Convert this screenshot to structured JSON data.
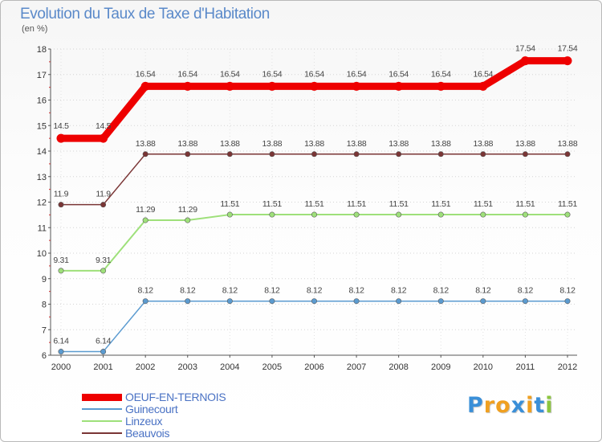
{
  "title": "Evolution du Taux de Taxe d'Habitation",
  "unit": "(en %)",
  "brand": {
    "letters": [
      "P",
      "r",
      "o",
      "x",
      "i",
      "t",
      "i"
    ],
    "colors": [
      "#3a8fd8",
      "#f0a020",
      "#f0a020",
      "#3a8fd8",
      "#f0a020",
      "#3a8fd8",
      "#8cc63f"
    ]
  },
  "chart_data": {
    "type": "line",
    "title": "Evolution du Taux de Taxe d'Habitation",
    "ylabel": "(en %)",
    "xlabel": "",
    "ylim": [
      6,
      18
    ],
    "yticks": [
      "6",
      "7",
      "8",
      "9",
      "10",
      "11",
      "12",
      "13",
      "14",
      "15",
      "16",
      "17",
      "18"
    ],
    "categories": [
      "2000",
      "2001",
      "2002",
      "2003",
      "2004",
      "2005",
      "2006",
      "2007",
      "2008",
      "2009",
      "2010",
      "2011",
      "2012"
    ],
    "series": [
      {
        "name": "OEUF-EN-TERNOIS",
        "color": "#ee0000",
        "width": 9,
        "markers": false,
        "values": [
          14.5,
          14.5,
          16.54,
          16.54,
          16.54,
          16.54,
          16.54,
          16.54,
          16.54,
          16.54,
          16.54,
          17.54,
          17.54
        ],
        "labels": [
          "14.5",
          "14.5",
          "16.54",
          "16.54",
          "16.54",
          "16.54",
          "16.54",
          "16.54",
          "16.54",
          "16.54",
          "16.54",
          "17.54",
          "17.54"
        ]
      },
      {
        "name": "Guinecourt",
        "color": "#5b9bd0",
        "width": 1.5,
        "markers": true,
        "values": [
          6.14,
          6.14,
          8.12,
          8.12,
          8.12,
          8.12,
          8.12,
          8.12,
          8.12,
          8.12,
          8.12,
          8.12,
          8.12
        ],
        "labels": [
          "6.14",
          "6.14",
          "8.12",
          "8.12",
          "8.12",
          "8.12",
          "8.12",
          "8.12",
          "8.12",
          "8.12",
          "8.12",
          "8.12",
          "8.12"
        ]
      },
      {
        "name": "Linzeux",
        "color": "#9ee07a",
        "width": 2,
        "markers": true,
        "values": [
          9.31,
          9.31,
          11.29,
          11.29,
          11.51,
          11.51,
          11.51,
          11.51,
          11.51,
          11.51,
          11.51,
          11.51,
          11.51
        ],
        "labels": [
          "9.31",
          "9.31",
          "11.29",
          "11.29",
          "11.51",
          "11.51",
          "11.51",
          "11.51",
          "11.51",
          "11.51",
          "11.51",
          "11.51",
          "11.51"
        ]
      },
      {
        "name": "Beauvois",
        "color": "#7a3535",
        "width": 1.5,
        "markers": true,
        "values": [
          11.9,
          11.9,
          13.88,
          13.88,
          13.88,
          13.88,
          13.88,
          13.88,
          13.88,
          13.88,
          13.88,
          13.88,
          13.88
        ],
        "labels": [
          "11.9",
          "11.9",
          "13.88",
          "13.88",
          "13.88",
          "13.88",
          "13.88",
          "13.88",
          "13.88",
          "13.88",
          "13.88",
          "13.88",
          "13.88"
        ]
      }
    ],
    "legend_position": "bottom-left"
  }
}
